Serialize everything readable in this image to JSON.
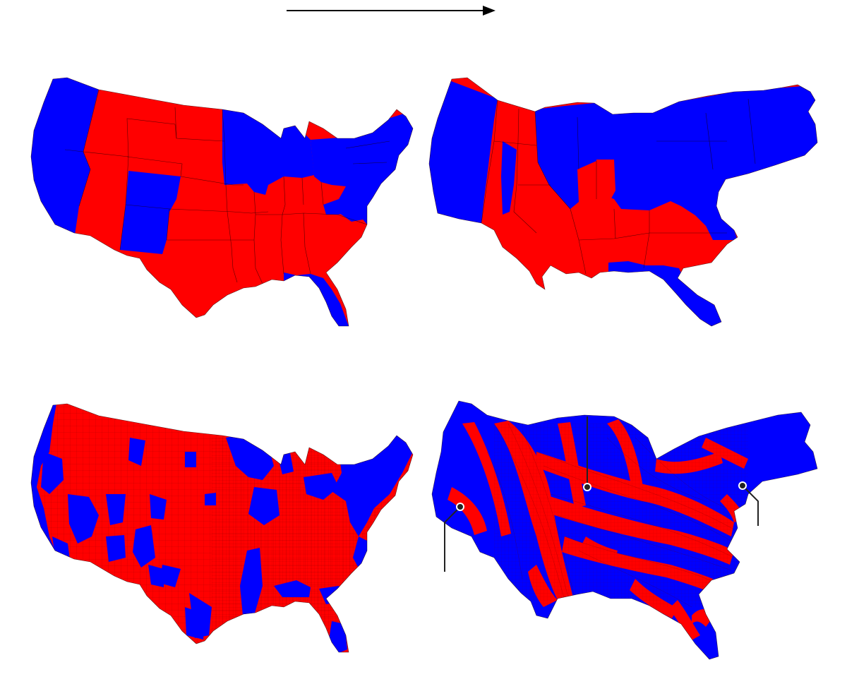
{
  "colors": {
    "blue": "#0000ff",
    "red": "#ff0000",
    "border": "#1a0000",
    "arrow": "#000000",
    "callout": "#222222",
    "background": "#ffffff"
  },
  "icons": {
    "arrow": "right-arrow-icon"
  },
  "panels": [
    {
      "id": "state-geographic",
      "level": "state",
      "projection": "geographic"
    },
    {
      "id": "state-cartogram",
      "level": "state",
      "projection": "population-cartogram"
    },
    {
      "id": "county-geographic",
      "level": "county",
      "projection": "geographic"
    },
    {
      "id": "county-cartogram",
      "level": "county",
      "projection": "population-cartogram",
      "callout_count": 3
    }
  ]
}
